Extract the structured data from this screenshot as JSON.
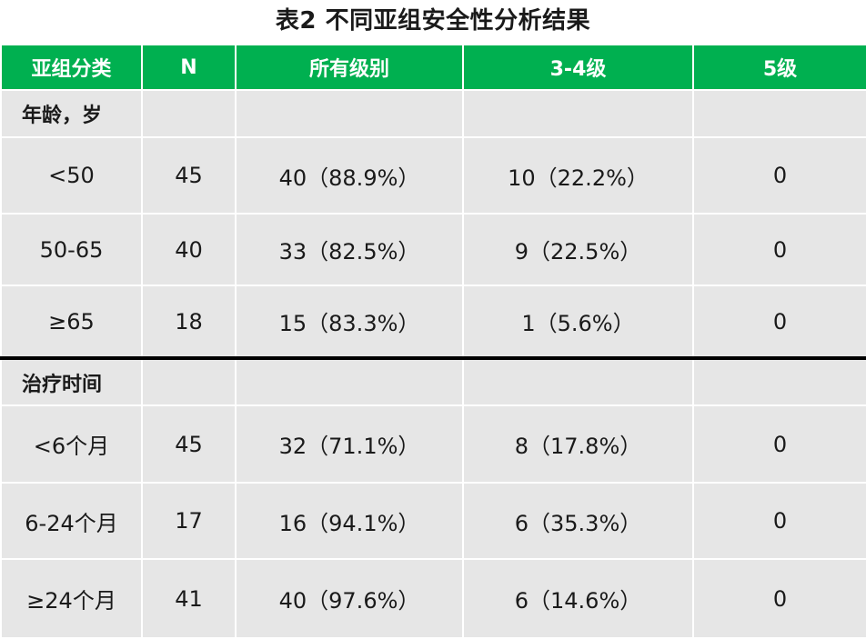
{
  "title": "表2 不同亚组安全性分析结果",
  "table": {
    "headers": [
      "亚组分类",
      "N",
      "所有级别",
      "3-4级",
      "5级"
    ],
    "sections": [
      {
        "label": "年龄，岁",
        "rows": [
          {
            "group": "<50",
            "n": "45",
            "all": "40（88.9%）",
            "g34": "10（22.2%）",
            "g5": "0"
          },
          {
            "group": "50-65",
            "n": "40",
            "all": "33（82.5%）",
            "g34": "9（22.5%）",
            "g5": "0"
          },
          {
            "group": "≥65",
            "n": "18",
            "all": "15（83.3%）",
            "g34": "1（5.6%）",
            "g5": "0"
          }
        ]
      },
      {
        "label": "治疗时间",
        "rows": [
          {
            "group": "<6个月",
            "n": "45",
            "all": "32（71.1%）",
            "g34": "8（17.8%）",
            "g5": "0"
          },
          {
            "group": "6-24个月",
            "n": "17",
            "all": "16（94.1%）",
            "g34": "6（35.3%）",
            "g5": "0"
          },
          {
            "group": "≥24个月",
            "n": "41",
            "all": "40（97.6%）",
            "g34": "6（14.6%）",
            "g5": "0"
          }
        ]
      }
    ]
  },
  "colors": {
    "header_bg": "#00b050",
    "header_text": "#ffffff",
    "cell_bg": "#e6e6e6",
    "divider": "#000000"
  }
}
